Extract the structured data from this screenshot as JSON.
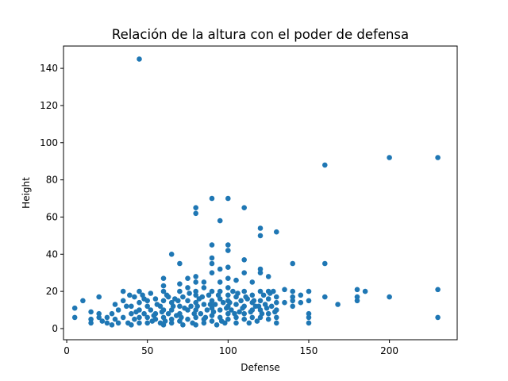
{
  "chart_data": {
    "type": "scatter",
    "title": "Relación de la altura con el poder de defensa",
    "xlabel": "Defense",
    "ylabel": "Height",
    "xlim": [
      -2,
      242
    ],
    "ylim": [
      -6,
      152
    ],
    "xticks": [
      0,
      50,
      100,
      150,
      200
    ],
    "yticks": [
      0,
      20,
      40,
      60,
      80,
      100,
      120,
      140
    ],
    "grid": false,
    "color": "#1f77b4",
    "points": [
      [
        45,
        145
      ],
      [
        160,
        88
      ],
      [
        200,
        92
      ],
      [
        230,
        92
      ],
      [
        90,
        70
      ],
      [
        100,
        70
      ],
      [
        110,
        65
      ],
      [
        80,
        65
      ],
      [
        80,
        62
      ],
      [
        95,
        58
      ],
      [
        120,
        54
      ],
      [
        130,
        52
      ],
      [
        120,
        50
      ],
      [
        90,
        45
      ],
      [
        100,
        45
      ],
      [
        100,
        42
      ],
      [
        90,
        38
      ],
      [
        110,
        37
      ],
      [
        65,
        40
      ],
      [
        70,
        35
      ],
      [
        90,
        35
      ],
      [
        140,
        35
      ],
      [
        160,
        35
      ],
      [
        100,
        33
      ],
      [
        95,
        32
      ],
      [
        120,
        32
      ],
      [
        110,
        30
      ],
      [
        90,
        30
      ],
      [
        120,
        30
      ],
      [
        80,
        28
      ],
      [
        60,
        27
      ],
      [
        75,
        27
      ],
      [
        100,
        27
      ],
      [
        80,
        25
      ],
      [
        85,
        25
      ],
      [
        95,
        25
      ],
      [
        105,
        26
      ],
      [
        115,
        25
      ],
      [
        125,
        28
      ],
      [
        70,
        24
      ],
      [
        60,
        23
      ],
      [
        180,
        21
      ],
      [
        230,
        21
      ],
      [
        185,
        20
      ],
      [
        135,
        21
      ],
      [
        140,
        20
      ],
      [
        150,
        20
      ],
      [
        160,
        17
      ],
      [
        200,
        17
      ],
      [
        180,
        17
      ],
      [
        180,
        15
      ],
      [
        168,
        13
      ],
      [
        150,
        15
      ],
      [
        150,
        8
      ],
      [
        150,
        6
      ],
      [
        150,
        3
      ],
      [
        140,
        17
      ],
      [
        140,
        15
      ],
      [
        145,
        18
      ],
      [
        145,
        14
      ],
      [
        130,
        3
      ],
      [
        130,
        10
      ],
      [
        140,
        12
      ],
      [
        125,
        20
      ],
      [
        130,
        17
      ],
      [
        135,
        14
      ],
      [
        230,
        6
      ],
      [
        5,
        11
      ],
      [
        5,
        6
      ],
      [
        10,
        15
      ],
      [
        15,
        9
      ],
      [
        15,
        5
      ],
      [
        15,
        3
      ],
      [
        20,
        17
      ],
      [
        20,
        8
      ],
      [
        20,
        6
      ],
      [
        22,
        4
      ],
      [
        25,
        3
      ],
      [
        25,
        6
      ],
      [
        28,
        2
      ],
      [
        30,
        5
      ],
      [
        30,
        13
      ],
      [
        32,
        10
      ],
      [
        35,
        20
      ],
      [
        35,
        15
      ],
      [
        35,
        6
      ],
      [
        38,
        3
      ],
      [
        40,
        2
      ],
      [
        40,
        8
      ],
      [
        40,
        12
      ],
      [
        42,
        17
      ],
      [
        42,
        5
      ],
      [
        45,
        20
      ],
      [
        45,
        14
      ],
      [
        45,
        10
      ],
      [
        45,
        6
      ],
      [
        45,
        3
      ],
      [
        47,
        18
      ],
      [
        48,
        8
      ],
      [
        50,
        15
      ],
      [
        50,
        12
      ],
      [
        50,
        6
      ],
      [
        50,
        3
      ],
      [
        52,
        10
      ],
      [
        53,
        4
      ],
      [
        55,
        16
      ],
      [
        55,
        8
      ],
      [
        55,
        5
      ],
      [
        58,
        12
      ],
      [
        58,
        3
      ],
      [
        60,
        20
      ],
      [
        60,
        15
      ],
      [
        60,
        10
      ],
      [
        60,
        6
      ],
      [
        60,
        2
      ],
      [
        62,
        18
      ],
      [
        63,
        8
      ],
      [
        65,
        14
      ],
      [
        65,
        5
      ],
      [
        65,
        10
      ],
      [
        65,
        3
      ],
      [
        67,
        16
      ],
      [
        68,
        7
      ],
      [
        70,
        20
      ],
      [
        70,
        12
      ],
      [
        70,
        8
      ],
      [
        70,
        4
      ],
      [
        72,
        17
      ],
      [
        72,
        2
      ],
      [
        75,
        22
      ],
      [
        75,
        15
      ],
      [
        75,
        10
      ],
      [
        75,
        5
      ],
      [
        77,
        12
      ],
      [
        78,
        3
      ],
      [
        80,
        20
      ],
      [
        80,
        18
      ],
      [
        80,
        14
      ],
      [
        80,
        10
      ],
      [
        80,
        6
      ],
      [
        80,
        2
      ],
      [
        82,
        16
      ],
      [
        83,
        8
      ],
      [
        85,
        22
      ],
      [
        85,
        13
      ],
      [
        85,
        5
      ],
      [
        85,
        3
      ],
      [
        87,
        10
      ],
      [
        88,
        18
      ],
      [
        90,
        20
      ],
      [
        90,
        15
      ],
      [
        90,
        11
      ],
      [
        90,
        7
      ],
      [
        90,
        4
      ],
      [
        92,
        13
      ],
      [
        93,
        2
      ],
      [
        95,
        20
      ],
      [
        95,
        16
      ],
      [
        95,
        10
      ],
      [
        95,
        6
      ],
      [
        97,
        14
      ],
      [
        98,
        3
      ],
      [
        100,
        22
      ],
      [
        100,
        18
      ],
      [
        100,
        15
      ],
      [
        100,
        12
      ],
      [
        100,
        8
      ],
      [
        100,
        5
      ],
      [
        102,
        10
      ],
      [
        103,
        20
      ],
      [
        105,
        17
      ],
      [
        105,
        13
      ],
      [
        105,
        6
      ],
      [
        105,
        3
      ],
      [
        107,
        9
      ],
      [
        108,
        15
      ],
      [
        110,
        20
      ],
      [
        110,
        12
      ],
      [
        110,
        8
      ],
      [
        110,
        5
      ],
      [
        112,
        16
      ],
      [
        113,
        3
      ],
      [
        115,
        18
      ],
      [
        115,
        14
      ],
      [
        115,
        10
      ],
      [
        115,
        6
      ],
      [
        117,
        12
      ],
      [
        118,
        4
      ],
      [
        120,
        20
      ],
      [
        120,
        15
      ],
      [
        120,
        10
      ],
      [
        120,
        6
      ],
      [
        122,
        18
      ],
      [
        123,
        13
      ],
      [
        125,
        16
      ],
      [
        125,
        8
      ],
      [
        125,
        5
      ],
      [
        127,
        12
      ],
      [
        128,
        20
      ],
      [
        130,
        14
      ],
      [
        130,
        6
      ],
      [
        28,
        8
      ],
      [
        32,
        3
      ],
      [
        37,
        12
      ],
      [
        39,
        18
      ],
      [
        43,
        9
      ],
      [
        48,
        16
      ],
      [
        52,
        19
      ],
      [
        54,
        7
      ],
      [
        56,
        13
      ],
      [
        59,
        9
      ],
      [
        61,
        4
      ],
      [
        63,
        17
      ],
      [
        66,
        12
      ],
      [
        69,
        15
      ],
      [
        71,
        6
      ],
      [
        73,
        11
      ],
      [
        76,
        19
      ],
      [
        79,
        8
      ],
      [
        81,
        12
      ],
      [
        84,
        17
      ],
      [
        86,
        6
      ],
      [
        89,
        13
      ],
      [
        91,
        9
      ],
      [
        94,
        18
      ],
      [
        96,
        4
      ],
      [
        99,
        11
      ],
      [
        101,
        14
      ],
      [
        104,
        8
      ],
      [
        106,
        19
      ],
      [
        109,
        11
      ],
      [
        111,
        17
      ],
      [
        114,
        9
      ],
      [
        116,
        15
      ],
      [
        119,
        12
      ],
      [
        121,
        8
      ],
      [
        124,
        11
      ],
      [
        126,
        19
      ],
      [
        129,
        9
      ]
    ]
  }
}
